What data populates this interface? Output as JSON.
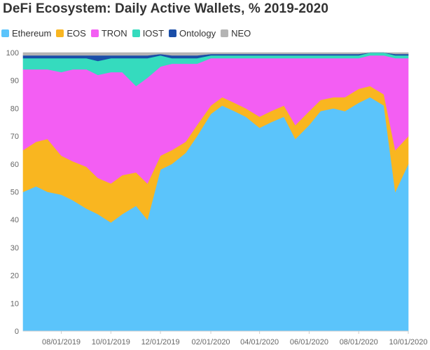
{
  "colors": {
    "Ethereum": "#5bc4fb",
    "EOS": "#f9b620",
    "TRON": "#f35ef3",
    "IOST": "#35dbbe",
    "Ontology": "#1a4ea8",
    "NEO": "#b4b4b4"
  },
  "chart_data": {
    "type": "area",
    "stacked": true,
    "title": "DeFi Ecosystem: Daily Active Wallets, % 2019-2020",
    "xlabel": "",
    "ylabel": "",
    "ylim": [
      0,
      100
    ],
    "yticks": [
      0,
      10,
      20,
      30,
      40,
      50,
      60,
      70,
      80,
      90,
      100
    ],
    "xtick_labels": [
      "08/01/2019",
      "10/01/2019",
      "12/01/2019",
      "02/01/2020",
      "04/01/2020",
      "06/01/2020",
      "08/01/2020",
      "10/01/2020"
    ],
    "x": [
      "06/15/2019",
      "07/01/2019",
      "07/15/2019",
      "08/01/2019",
      "08/15/2019",
      "09/01/2019",
      "09/15/2019",
      "10/01/2019",
      "10/15/2019",
      "11/01/2019",
      "11/15/2019",
      "12/01/2019",
      "12/15/2019",
      "01/01/2020",
      "01/15/2020",
      "02/01/2020",
      "02/15/2020",
      "03/01/2020",
      "03/15/2020",
      "04/01/2020",
      "04/15/2020",
      "05/01/2020",
      "05/15/2020",
      "06/01/2020",
      "06/15/2020",
      "07/01/2020",
      "07/15/2020",
      "08/01/2020",
      "08/15/2020",
      "09/01/2020",
      "09/15/2020",
      "10/01/2020"
    ],
    "grid": true,
    "legend_position": "top-left",
    "series": [
      {
        "name": "Ethereum",
        "values": [
          50,
          52,
          50,
          49,
          47,
          44,
          42,
          39,
          42,
          45,
          40,
          58,
          60,
          64,
          70,
          78,
          81,
          79,
          77,
          73,
          75,
          77,
          69,
          74,
          79,
          80,
          79,
          82,
          84,
          81,
          50,
          60
        ]
      },
      {
        "name": "EOS",
        "values": [
          15,
          16,
          19,
          14,
          14,
          15,
          13,
          14,
          14,
          12,
          13,
          5,
          5,
          4,
          4,
          3,
          3,
          3,
          3,
          4,
          4,
          4,
          5,
          5,
          4,
          4,
          5,
          5,
          4,
          4,
          15,
          10
        ]
      },
      {
        "name": "TRON",
        "values": [
          29,
          26,
          25,
          30,
          33,
          35,
          37,
          40,
          37,
          31,
          38,
          32,
          31,
          28,
          22,
          17,
          14,
          16,
          18,
          21,
          19,
          17,
          24,
          19,
          15,
          14,
          14,
          11,
          11,
          14,
          33,
          28
        ]
      },
      {
        "name": "IOST",
        "values": [
          4,
          4,
          4,
          5,
          4,
          4,
          5,
          5,
          5,
          10,
          7,
          4,
          2,
          2,
          2,
          1,
          1,
          1,
          1,
          1,
          1,
          1,
          1,
          1,
          1,
          1,
          1,
          1,
          1,
          1,
          1,
          1
        ]
      },
      {
        "name": "Ontology",
        "values": [
          1,
          1,
          1,
          1,
          1,
          1,
          2,
          1,
          1,
          1,
          1,
          0.5,
          1,
          1,
          1,
          0.5,
          0.5,
          0.5,
          0.5,
          0.5,
          0.5,
          0.5,
          0.5,
          0.5,
          0.5,
          0.5,
          0.5,
          0.5,
          0.5,
          0.5,
          0.5,
          0.5
        ]
      },
      {
        "name": "NEO",
        "values": [
          1,
          1,
          1,
          1,
          1,
          1,
          1,
          1,
          1,
          1,
          1,
          0.5,
          1,
          1,
          1,
          0.5,
          0.5,
          0.5,
          0.5,
          0.5,
          0.5,
          0.5,
          0.5,
          0.5,
          0.5,
          0.5,
          0.5,
          0.5,
          0.5,
          0.5,
          0.5,
          0.5
        ]
      }
    ]
  }
}
